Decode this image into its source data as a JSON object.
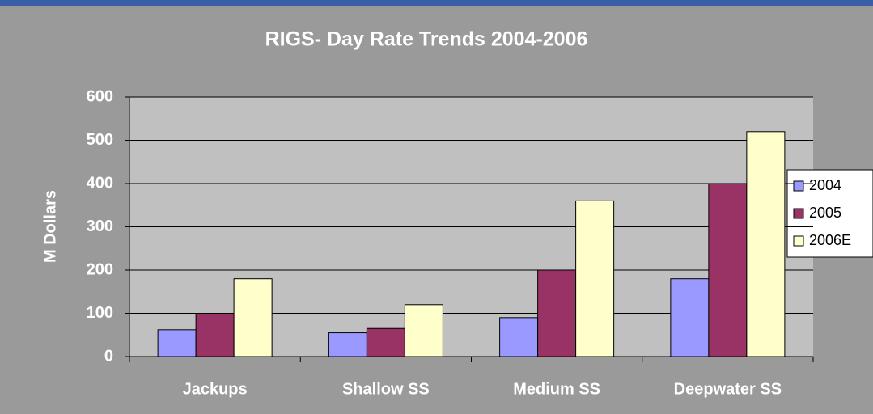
{
  "chart_data": {
    "type": "bar",
    "title": "RIGS- Day Rate Trends 2004-2006",
    "ylabel": "M Dollars",
    "categories": [
      "Jackups",
      "Shallow SS",
      "Medium SS",
      "Deepwater SS"
    ],
    "series": [
      {
        "name": "2004",
        "color": "#9999ff",
        "values": [
          62,
          55,
          90,
          180
        ]
      },
      {
        "name": "2005",
        "color": "#993366",
        "values": [
          100,
          65,
          200,
          400
        ]
      },
      {
        "name": "2006E",
        "color": "#ffffcc",
        "values": [
          180,
          120,
          360,
          520
        ]
      }
    ],
    "ylim": [
      0,
      600
    ],
    "yticks": [
      0,
      100,
      200,
      300,
      400,
      500,
      600
    ],
    "grid": true,
    "legend": "right"
  }
}
